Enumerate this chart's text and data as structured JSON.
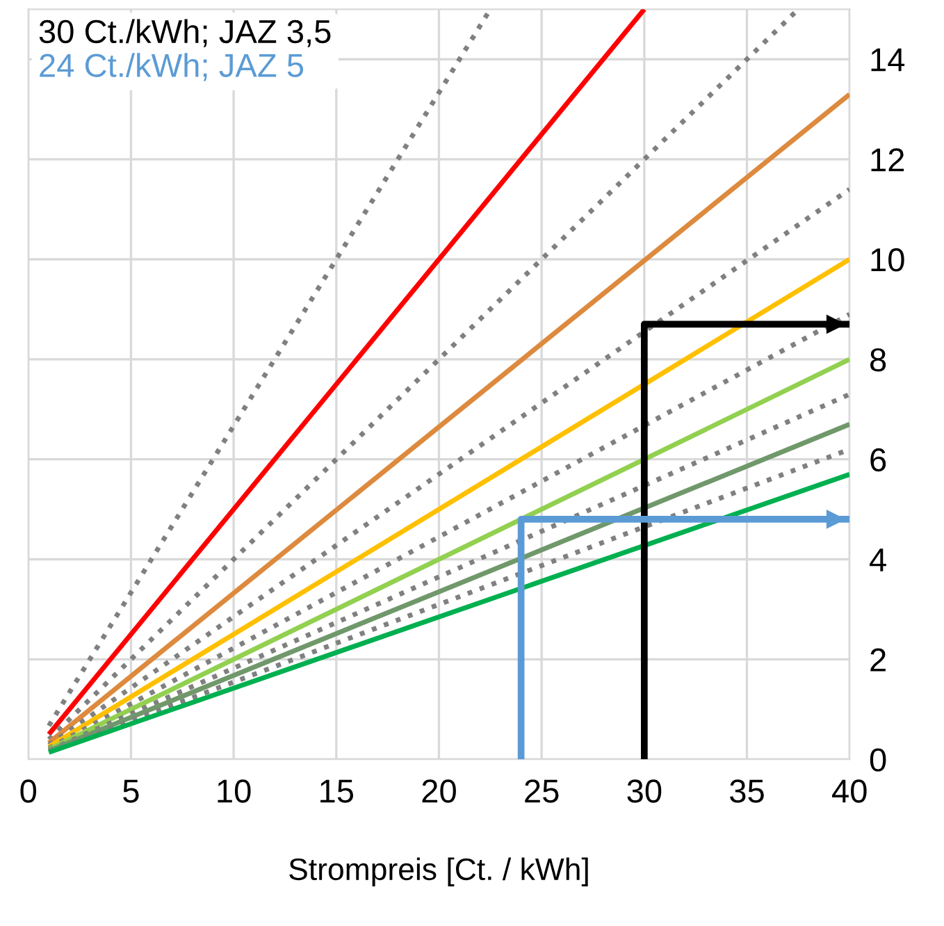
{
  "chart_data": {
    "type": "line",
    "xlabel": "Strompreis [Ct. / kWh]",
    "xlim": [
      0,
      40
    ],
    "xticks": [
      0,
      5,
      10,
      15,
      20,
      25,
      30,
      35,
      40
    ],
    "ylim": [
      0,
      15
    ],
    "yticks": [
      0,
      2,
      4,
      6,
      8,
      10,
      12,
      14
    ],
    "grid": true,
    "legend": "top left",
    "marker": "none",
    "series": [
      {
        "color": "#808080",
        "line_style": "dotted",
        "x": [
          1,
          22.5
        ],
        "values": [
          0.67,
          15
        ]
      },
      {
        "color": "#ff0000",
        "line_style": "solid",
        "x": [
          1,
          30
        ],
        "values": [
          0.5,
          15
        ]
      },
      {
        "color": "#808080",
        "line_style": "dotted",
        "x": [
          1,
          37.5
        ],
        "values": [
          0.4,
          15
        ]
      },
      {
        "color": "#dd8a3e",
        "line_style": "solid",
        "x": [
          1,
          40
        ],
        "values": [
          0.33,
          13.3
        ]
      },
      {
        "color": "#808080",
        "line_style": "dotted",
        "x": [
          1,
          40
        ],
        "values": [
          0.29,
          11.4
        ]
      },
      {
        "color": "#ffc000",
        "line_style": "solid",
        "x": [
          1,
          40
        ],
        "values": [
          0.25,
          10
        ]
      },
      {
        "color": "#808080",
        "line_style": "dotted",
        "x": [
          1,
          40
        ],
        "values": [
          0.22,
          8.9
        ]
      },
      {
        "color": "#92d050",
        "line_style": "solid",
        "x": [
          1,
          40
        ],
        "values": [
          0.2,
          8
        ]
      },
      {
        "color": "#808080",
        "line_style": "dotted",
        "x": [
          1,
          40
        ],
        "values": [
          0.18,
          7.3
        ]
      },
      {
        "color": "#70986b",
        "line_style": "solid",
        "x": [
          1,
          40
        ],
        "values": [
          0.17,
          6.7
        ]
      },
      {
        "color": "#808080",
        "line_style": "dotted",
        "x": [
          1,
          40
        ],
        "values": [
          0.15,
          6.2
        ]
      },
      {
        "color": "#00b050",
        "line_style": "solid",
        "x": [
          1,
          40
        ],
        "values": [
          0.14,
          5.7
        ]
      },
      {
        "name": "30 Ct./kWh; JAZ 3,5",
        "color": "#000000",
        "line_style": "solid",
        "x": [
          30,
          30,
          40
        ],
        "values": [
          0,
          8.7,
          8.7
        ]
      },
      {
        "name": "24 Ct./kWh; JAZ 5",
        "color": "#5b9bd5",
        "line_style": "solid",
        "x": [
          24,
          24,
          40
        ],
        "values": [
          0,
          4.8,
          4.8
        ]
      }
    ]
  }
}
